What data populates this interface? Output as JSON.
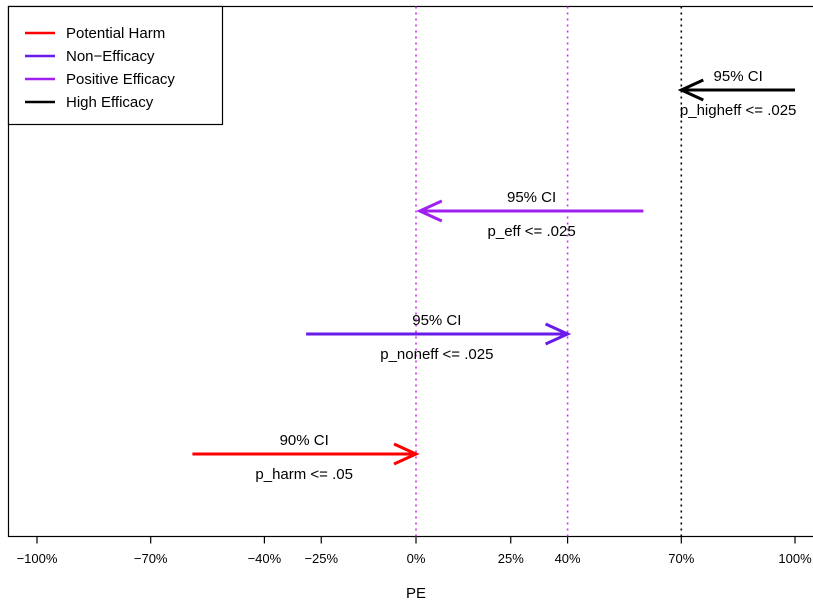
{
  "chart_data": {
    "type": "line",
    "xlabel": "PE",
    "xlim": [
      -110,
      100
    ],
    "x_ticks": [
      {
        "value": -100,
        "label": "−100%"
      },
      {
        "value": -70,
        "label": "−70%"
      },
      {
        "value": -40,
        "label": "−40%"
      },
      {
        "value": -25,
        "label": "−25%"
      },
      {
        "value": 0,
        "label": "0%"
      },
      {
        "value": 25,
        "label": "25%"
      },
      {
        "value": 40,
        "label": "40%"
      },
      {
        "value": 70,
        "label": "70%"
      },
      {
        "value": 100,
        "label": "100%"
      }
    ],
    "reference_lines": [
      {
        "x": 0,
        "color": "#cc33ee",
        "style": "dotted"
      },
      {
        "x": 40,
        "color": "#cc33ee",
        "style": "dotted"
      },
      {
        "x": 70,
        "color": "#000000",
        "style": "dotted"
      }
    ],
    "legend": {
      "position": "top-left",
      "entries": [
        {
          "label": "Potential Harm",
          "color": "#ff0000"
        },
        {
          "label": "Non−Efficacy",
          "color": "#6a1bea"
        },
        {
          "label": "Positive Efficacy",
          "color": "#a020f0"
        },
        {
          "label": "High Efficacy",
          "color": "#000000"
        }
      ]
    },
    "series": [
      {
        "label": "Potential Harm",
        "color": "#ff0000",
        "from": -59,
        "to": 0,
        "level": 1,
        "ci_label": "90% CI",
        "p_label": "p_harm <= .05"
      },
      {
        "label": "Non−Efficacy",
        "color": "#6a1bea",
        "from": -29,
        "to": 40,
        "level": 2,
        "ci_label": "95% CI",
        "p_label": "p_noneff <= .025"
      },
      {
        "label": "Positive Efficacy",
        "color": "#a020f0",
        "from": 60,
        "to": 1,
        "level": 3,
        "ci_label": "95% CI",
        "p_label": "p_eff <= .025"
      },
      {
        "label": "High Efficacy",
        "color": "#000000",
        "from": 100,
        "to": 70,
        "level": 4,
        "ci_label": "95% CI",
        "p_label": "p_higheff <= .025"
      }
    ]
  }
}
